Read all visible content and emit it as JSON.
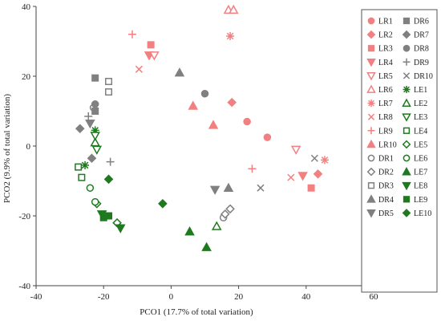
{
  "chart_data": {
    "type": "scatter",
    "xlabel": "PCO1 (17.7% of total variation)",
    "ylabel": "PCO2 (9.9% of total variation)",
    "xlim": [
      -40,
      60
    ],
    "ylim": [
      -40,
      40
    ],
    "xticks": [
      -40,
      -20,
      0,
      20,
      40,
      60
    ],
    "yticks": [
      -40,
      -20,
      0,
      20,
      40
    ],
    "grid": false,
    "legend_position": "right",
    "colors": {
      "LR": "#f28080",
      "DR": "#808080",
      "LE": "#1f7a1f"
    },
    "series": [
      {
        "name": "LR1",
        "group": "LR",
        "marker": "circle-filled",
        "x": 22.5,
        "y": 7
      },
      {
        "name": "LR1",
        "group": "LR",
        "marker": "circle-filled",
        "x": 28.5,
        "y": 2.5
      },
      {
        "name": "LR2",
        "group": "LR",
        "marker": "diamond-filled",
        "x": 18,
        "y": 12.5
      },
      {
        "name": "LR2",
        "group": "LR",
        "marker": "diamond-filled",
        "x": 43.5,
        "y": -8
      },
      {
        "name": "LR3",
        "group": "LR",
        "marker": "square-filled",
        "x": -6,
        "y": 29
      },
      {
        "name": "LR3",
        "group": "LR",
        "marker": "square-filled",
        "x": 41.5,
        "y": -12
      },
      {
        "name": "LR4",
        "group": "LR",
        "marker": "tri-down-filled",
        "x": -6.5,
        "y": 26
      },
      {
        "name": "LR4",
        "group": "LR",
        "marker": "tri-down-filled",
        "x": 39,
        "y": -8.5
      },
      {
        "name": "LR5",
        "group": "LR",
        "marker": "tri-down-open",
        "x": -5,
        "y": 26
      },
      {
        "name": "LR5",
        "group": "LR",
        "marker": "tri-down-open",
        "x": 37,
        "y": -1
      },
      {
        "name": "LR6",
        "group": "LR",
        "marker": "tri-up-open",
        "x": 17,
        "y": 39
      },
      {
        "name": "LR6",
        "group": "LR",
        "marker": "tri-up-open",
        "x": 18.5,
        "y": 39
      },
      {
        "name": "LR7",
        "group": "LR",
        "marker": "star",
        "x": 17.5,
        "y": 31.5
      },
      {
        "name": "LR7",
        "group": "LR",
        "marker": "star",
        "x": 45.5,
        "y": -4
      },
      {
        "name": "LR8",
        "group": "LR",
        "marker": "x",
        "x": -9.5,
        "y": 22
      },
      {
        "name": "LR8",
        "group": "LR",
        "marker": "x",
        "x": 35.5,
        "y": -9
      },
      {
        "name": "LR9",
        "group": "LR",
        "marker": "plus",
        "x": -11.5,
        "y": 32
      },
      {
        "name": "LR9",
        "group": "LR",
        "marker": "plus",
        "x": 24,
        "y": -6.5
      },
      {
        "name": "LR10",
        "group": "LR",
        "marker": "tri-up-filled",
        "x": 6.5,
        "y": 11.5
      },
      {
        "name": "LR10",
        "group": "LR",
        "marker": "tri-up-filled",
        "x": 12.5,
        "y": 6
      },
      {
        "name": "DR1",
        "group": "DR",
        "marker": "circle-open",
        "x": -23,
        "y": 11
      },
      {
        "name": "DR1",
        "group": "DR",
        "marker": "circle-open",
        "x": 15.5,
        "y": -20.5
      },
      {
        "name": "DR2",
        "group": "DR",
        "marker": "diamond-open",
        "x": 16,
        "y": -19.5
      },
      {
        "name": "DR2",
        "group": "DR",
        "marker": "diamond-open",
        "x": 17.5,
        "y": -18
      },
      {
        "name": "DR3",
        "group": "DR",
        "marker": "square-open",
        "x": -18.5,
        "y": 18.5
      },
      {
        "name": "DR3",
        "group": "DR",
        "marker": "square-open",
        "x": -18.5,
        "y": 15.5
      },
      {
        "name": "DR4",
        "group": "DR",
        "marker": "tri-up-filled",
        "x": 2.5,
        "y": 21
      },
      {
        "name": "DR4",
        "group": "DR",
        "marker": "tri-up-filled",
        "x": 17,
        "y": -12
      },
      {
        "name": "DR5",
        "group": "DR",
        "marker": "tri-down-filled",
        "x": -24,
        "y": 6.5
      },
      {
        "name": "DR5",
        "group": "DR",
        "marker": "tri-down-filled",
        "x": 13,
        "y": -12.5
      },
      {
        "name": "DR6",
        "group": "DR",
        "marker": "square-filled",
        "x": -22.5,
        "y": 19.5
      },
      {
        "name": "DR6",
        "group": "DR",
        "marker": "square-filled",
        "x": -22.5,
        "y": 10
      },
      {
        "name": "DR7",
        "group": "DR",
        "marker": "diamond-filled",
        "x": -27,
        "y": 5
      },
      {
        "name": "DR7",
        "group": "DR",
        "marker": "diamond-filled",
        "x": -23.5,
        "y": -3.5
      },
      {
        "name": "DR8",
        "group": "DR",
        "marker": "circle-filled",
        "x": -22.5,
        "y": 12
      },
      {
        "name": "DR8",
        "group": "DR",
        "marker": "circle-filled",
        "x": 10,
        "y": 15
      },
      {
        "name": "DR9",
        "group": "DR",
        "marker": "plus",
        "x": -24.5,
        "y": 8.5
      },
      {
        "name": "DR9",
        "group": "DR",
        "marker": "plus",
        "x": -18,
        "y": -4.5
      },
      {
        "name": "DR10",
        "group": "DR",
        "marker": "x",
        "x": 42.5,
        "y": -3.5
      },
      {
        "name": "DR10",
        "group": "DR",
        "marker": "x",
        "x": 26.5,
        "y": -12
      },
      {
        "name": "LE1",
        "group": "LE",
        "marker": "star",
        "x": -22.5,
        "y": 4.5
      },
      {
        "name": "LE1",
        "group": "LE",
        "marker": "star",
        "x": -25.5,
        "y": -5.5
      },
      {
        "name": "LE2",
        "group": "LE",
        "marker": "tri-up-open",
        "x": -22.5,
        "y": 1
      },
      {
        "name": "LE2",
        "group": "LE",
        "marker": "tri-up-open",
        "x": 13.5,
        "y": -23
      },
      {
        "name": "LE3",
        "group": "LE",
        "marker": "tri-down-open",
        "x": -22.5,
        "y": 3
      },
      {
        "name": "LE3",
        "group": "LE",
        "marker": "tri-down-open",
        "x": -22,
        "y": -1
      },
      {
        "name": "LE4",
        "group": "LE",
        "marker": "square-open",
        "x": -27.5,
        "y": -6
      },
      {
        "name": "LE4",
        "group": "LE",
        "marker": "square-open",
        "x": -26.5,
        "y": -9
      },
      {
        "name": "LE5",
        "group": "LE",
        "marker": "diamond-open",
        "x": -16,
        "y": -22
      },
      {
        "name": "LE5",
        "group": "LE",
        "marker": "diamond-open",
        "x": -22,
        "y": -16.5
      },
      {
        "name": "LE6",
        "group": "LE",
        "marker": "circle-open",
        "x": -22.5,
        "y": -16
      },
      {
        "name": "LE6",
        "group": "LE",
        "marker": "circle-open",
        "x": -24,
        "y": -12
      },
      {
        "name": "LE7",
        "group": "LE",
        "marker": "tri-up-filled",
        "x": 5.5,
        "y": -24.5
      },
      {
        "name": "LE7",
        "group": "LE",
        "marker": "tri-up-filled",
        "x": 10.5,
        "y": -29
      },
      {
        "name": "LE8",
        "group": "LE",
        "marker": "tri-down-filled",
        "x": -15,
        "y": -23.5
      },
      {
        "name": "LE8",
        "group": "LE",
        "marker": "tri-down-filled",
        "x": -20.5,
        "y": -19.5
      },
      {
        "name": "LE9",
        "group": "LE",
        "marker": "square-filled",
        "x": -20,
        "y": -20.5
      },
      {
        "name": "LE9",
        "group": "LE",
        "marker": "square-filled",
        "x": -18.5,
        "y": -20
      },
      {
        "name": "LE10",
        "group": "LE",
        "marker": "diamond-filled",
        "x": -18.5,
        "y": -9.5
      },
      {
        "name": "LE10",
        "group": "LE",
        "marker": "diamond-filled",
        "x": -2.5,
        "y": -16.5
      }
    ],
    "legend": [
      {
        "label": "LR1",
        "group": "LR",
        "marker": "circle-filled"
      },
      {
        "label": "LR2",
        "group": "LR",
        "marker": "diamond-filled"
      },
      {
        "label": "LR3",
        "group": "LR",
        "marker": "square-filled"
      },
      {
        "label": "LR4",
        "group": "LR",
        "marker": "tri-down-filled"
      },
      {
        "label": "LR5",
        "group": "LR",
        "marker": "tri-down-open"
      },
      {
        "label": "LR6",
        "group": "LR",
        "marker": "tri-up-open"
      },
      {
        "label": "LR7",
        "group": "LR",
        "marker": "star"
      },
      {
        "label": "LR8",
        "group": "LR",
        "marker": "x"
      },
      {
        "label": "LR9",
        "group": "LR",
        "marker": "plus"
      },
      {
        "label": "LR10",
        "group": "LR",
        "marker": "tri-up-filled"
      },
      {
        "label": "DR1",
        "group": "DR",
        "marker": "circle-open"
      },
      {
        "label": "DR2",
        "group": "DR",
        "marker": "diamond-open"
      },
      {
        "label": "DR3",
        "group": "DR",
        "marker": "square-open"
      },
      {
        "label": "DR4",
        "group": "DR",
        "marker": "tri-up-filled"
      },
      {
        "label": "DR5",
        "group": "DR",
        "marker": "tri-down-filled"
      },
      {
        "label": "DR6",
        "group": "DR",
        "marker": "square-filled"
      },
      {
        "label": "DR7",
        "group": "DR",
        "marker": "diamond-filled"
      },
      {
        "label": "DR8",
        "group": "DR",
        "marker": "circle-filled"
      },
      {
        "label": "DR9",
        "group": "DR",
        "marker": "plus"
      },
      {
        "label": "DR10",
        "group": "DR",
        "marker": "x"
      },
      {
        "label": "LE1",
        "group": "LE",
        "marker": "star"
      },
      {
        "label": "LE2",
        "group": "LE",
        "marker": "tri-up-open"
      },
      {
        "label": "LE3",
        "group": "LE",
        "marker": "tri-down-open"
      },
      {
        "label": "LE4",
        "group": "LE",
        "marker": "square-open"
      },
      {
        "label": "LE5",
        "group": "LE",
        "marker": "diamond-open"
      },
      {
        "label": "LE6",
        "group": "LE",
        "marker": "circle-open"
      },
      {
        "label": "LE7",
        "group": "LE",
        "marker": "tri-up-filled"
      },
      {
        "label": "LE8",
        "group": "LE",
        "marker": "tri-down-filled"
      },
      {
        "label": "LE9",
        "group": "LE",
        "marker": "square-filled"
      },
      {
        "label": "LE10",
        "group": "LE",
        "marker": "diamond-filled"
      }
    ]
  }
}
